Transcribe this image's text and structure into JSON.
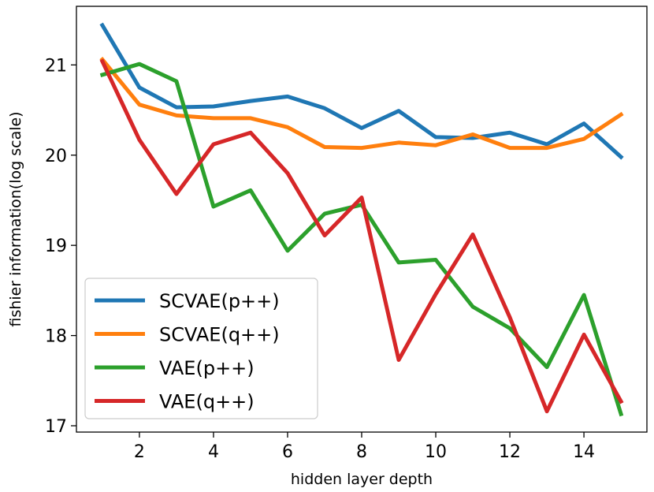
{
  "chart_data": {
    "type": "line",
    "title": "",
    "xlabel": "hidden layer depth",
    "ylabel": "fishier information(log scale)",
    "xlim": [
      0.3,
      15.7
    ],
    "ylim": [
      16.93,
      21.65
    ],
    "xticks": [
      2,
      4,
      6,
      8,
      10,
      12,
      14
    ],
    "yticks": [
      17,
      18,
      19,
      20,
      21
    ],
    "grid": false,
    "legend_position": "lower-left",
    "x": [
      1,
      2,
      3,
      4,
      5,
      6,
      7,
      8,
      9,
      10,
      11,
      12,
      13,
      14,
      15
    ],
    "series": [
      {
        "name": "SCVAE(p++)",
        "color": "#1f77b4",
        "values": [
          21.44,
          20.75,
          20.53,
          20.54,
          20.6,
          20.65,
          20.52,
          20.3,
          20.49,
          20.2,
          20.19,
          20.25,
          20.12,
          20.35,
          19.98
        ]
      },
      {
        "name": "SCVAE(q++)",
        "color": "#ff7f0e",
        "values": [
          21.06,
          20.56,
          20.44,
          20.41,
          20.41,
          20.31,
          20.09,
          20.08,
          20.14,
          20.11,
          20.23,
          20.08,
          20.08,
          20.18,
          20.45
        ]
      },
      {
        "name": "VAE(p++)",
        "color": "#2ca02c",
        "values": [
          20.89,
          21.01,
          20.82,
          19.43,
          19.61,
          18.94,
          19.35,
          19.45,
          18.81,
          18.84,
          18.32,
          18.08,
          17.65,
          18.45,
          17.13
        ]
      },
      {
        "name": "VAE(q++)",
        "color": "#d62728",
        "values": [
          21.04,
          20.17,
          19.57,
          20.12,
          20.25,
          19.8,
          19.11,
          19.53,
          17.73,
          18.46,
          19.12,
          18.2,
          17.16,
          18.01,
          17.27
        ]
      }
    ]
  }
}
